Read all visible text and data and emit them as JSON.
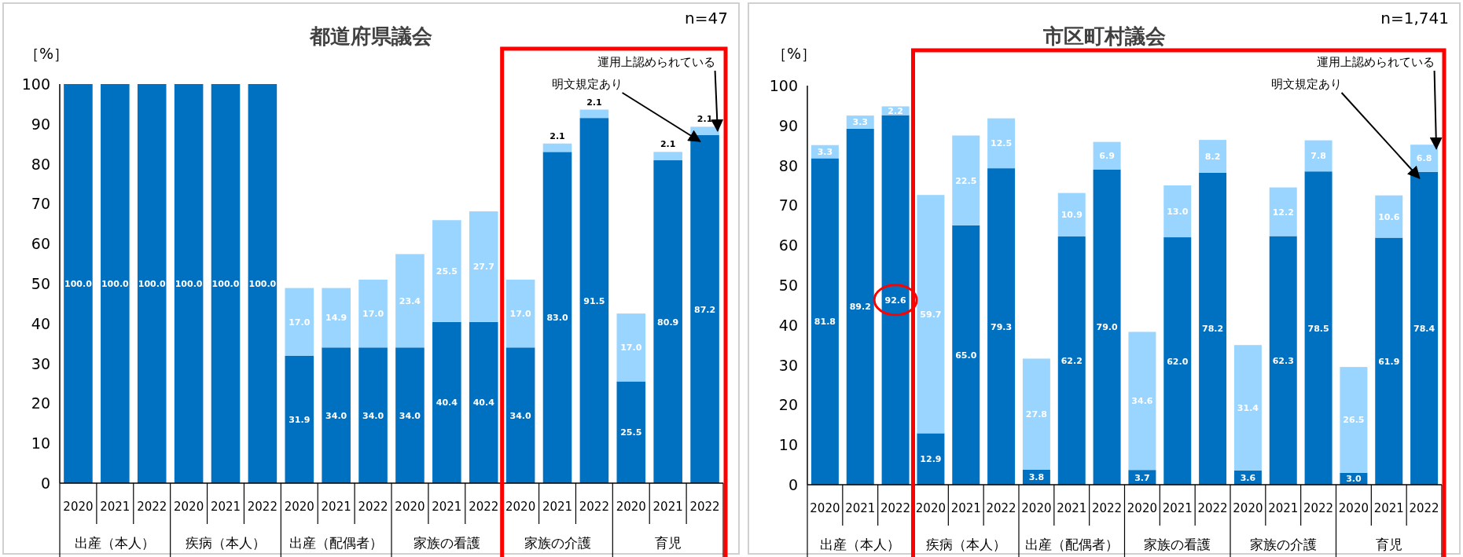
{
  "chart_data": [
    {
      "type": "bar",
      "title": "都道府県議会",
      "ylabel": "［%］",
      "stacked": true,
      "ylim": [
        0,
        100
      ],
      "yticks": [
        0,
        10,
        20,
        30,
        40,
        50,
        60,
        70,
        80,
        90,
        100
      ],
      "categories": [
        "2020",
        "2021",
        "2022",
        "2020",
        "2021",
        "2022",
        "2020",
        "2021",
        "2022",
        "2020",
        "2021",
        "2022",
        "2020",
        "2021",
        "2022",
        "2020",
        "2021",
        "2022"
      ],
      "annotations": [
        "出産（本人）",
        "疾病（本人）",
        "出産（配偶者）",
        "家族の看護",
        "家族の介護",
        "育児",
        "n=47"
      ],
      "series": [
        {
          "name": "明文規定あり",
          "color": "#0070c0",
          "values": [
            100.0,
            100.0,
            100.0,
            100.0,
            100.0,
            100.0,
            31.9,
            34.0,
            34.0,
            34.0,
            40.4,
            40.4,
            34.0,
            83.0,
            91.5,
            25.5,
            80.9,
            87.2
          ],
          "value_labels": [
            "100.0",
            "100.0",
            "100.0",
            "100.0",
            "100.0",
            "100.0",
            "31.9",
            "34.0",
            "34.0",
            "34.0",
            "40.4",
            "40.4",
            "34.0",
            "83.0",
            "91.5",
            "25.5",
            "80.9",
            "87.2"
          ]
        },
        {
          "name": "運用上認められている",
          "color": "#99d5ff",
          "values": [
            null,
            null,
            null,
            null,
            null,
            null,
            17.0,
            14.9,
            17.0,
            23.4,
            25.5,
            27.7,
            17.0,
            2.1,
            2.1,
            17.0,
            2.1,
            2.1
          ],
          "value_labels": [
            null,
            null,
            null,
            null,
            null,
            null,
            "17.0",
            "14.9",
            "17.0",
            "23.4",
            "25.5",
            "27.7",
            "17.0",
            "2.1",
            "2.1",
            "17.0",
            "2.1",
            "2.1"
          ]
        }
      ]
    },
    {
      "type": "bar",
      "title": "市区町村議会",
      "ylabel": "［%］",
      "stacked": true,
      "ylim": [
        0,
        100
      ],
      "yticks": [
        0,
        10,
        20,
        30,
        40,
        50,
        60,
        70,
        80,
        90,
        100
      ],
      "categories": [
        "2020",
        "2021",
        "2022",
        "2020",
        "2021",
        "2022",
        "2020",
        "2021",
        "2022",
        "2020",
        "2021",
        "2022",
        "2020",
        "2021",
        "2022",
        "2020",
        "2021",
        "2022"
      ],
      "annotations": [
        "出産（本人）",
        "疾病（本人）",
        "出産（配偶者）",
        "家族の看護",
        "家族の介護",
        "育児",
        "n=1,741"
      ],
      "series": [
        {
          "name": "明文規定あり",
          "color": "#0070c0",
          "values": [
            81.8,
            89.2,
            92.6,
            12.9,
            65.0,
            79.3,
            3.8,
            62.2,
            79.0,
            3.7,
            62.0,
            78.2,
            3.6,
            62.3,
            78.5,
            3.0,
            61.9,
            78.4
          ],
          "value_labels": [
            "81.8",
            "89.2",
            "92.6",
            "12.9",
            "65.0",
            "79.3",
            "3.8",
            "62.2",
            "79.0",
            "3.7",
            "62.0",
            "78.2",
            "3.6",
            "62.3",
            "78.5",
            "3.0",
            "61.9",
            "78.4"
          ]
        },
        {
          "name": "運用上認められている",
          "color": "#99d5ff",
          "values": [
            3.3,
            3.3,
            2.2,
            59.7,
            22.5,
            12.5,
            27.8,
            10.9,
            6.9,
            34.6,
            13.0,
            8.2,
            31.4,
            12.2,
            7.8,
            26.5,
            10.6,
            6.8
          ],
          "value_labels": [
            "3.3",
            "3.3",
            "2.2",
            "59.7",
            "22.5",
            "12.5",
            "27.8",
            "10.9",
            "6.9",
            "34.6",
            "13.0",
            "8.2",
            "31.4",
            "12.2",
            "7.8",
            "26.5",
            "10.6",
            "6.8"
          ]
        }
      ]
    }
  ]
}
